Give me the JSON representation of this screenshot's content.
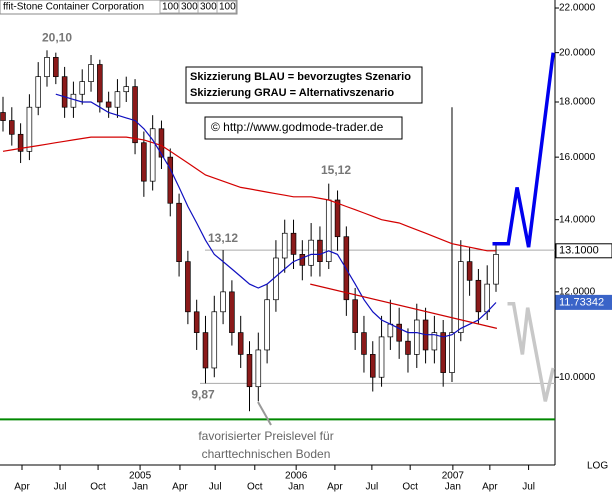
{
  "chart_data": {
    "type": "candlestick",
    "title": "ffit-Stone Container Corporation",
    "parameters": [
      "100",
      "300",
      "300",
      "100"
    ],
    "open": [
      17.6,
      17.3,
      16.8,
      16.2,
      17.8,
      19.0,
      19.8,
      19.0,
      17.8,
      18.3,
      18.8,
      19.5,
      18.0,
      17.8,
      18.4,
      18.6,
      16.5,
      15.2,
      17.0,
      16.0,
      14.5,
      12.8,
      11.5,
      11.0,
      10.2,
      11.5,
      12.0,
      11.0,
      10.5,
      9.8,
      10.6,
      11.8,
      12.9,
      13.6,
      13.0,
      12.7,
      13.4,
      12.8,
      14.6,
      13.5,
      11.8,
      11.0,
      10.5,
      10.0,
      10.9,
      11.2,
      10.8,
      10.5,
      11.3,
      10.6,
      11.0,
      10.1,
      11.0,
      12.8,
      12.3,
      11.5,
      12.2
    ],
    "high": [
      18.2,
      17.8,
      17.2,
      18.3,
      19.6,
      20.1,
      20.0,
      19.4,
      18.8,
      19.3,
      19.9,
      19.7,
      18.4,
      18.9,
      19.0,
      18.9,
      16.9,
      17.5,
      17.3,
      16.3,
      14.8,
      13.1,
      11.8,
      11.4,
      11.9,
      13.12,
      12.3,
      11.4,
      10.8,
      11.0,
      12.2,
      13.4,
      14.0,
      14.0,
      13.4,
      13.9,
      13.8,
      15.12,
      14.9,
      13.8,
      12.1,
      11.4,
      10.8,
      11.4,
      11.8,
      11.6,
      11.1,
      11.7,
      11.6,
      11.4,
      11.3,
      17.8,
      13.4,
      13.2,
      12.6,
      12.7,
      13.3
    ],
    "low": [
      16.9,
      16.4,
      15.8,
      15.9,
      17.5,
      18.6,
      18.7,
      17.4,
      17.4,
      17.9,
      18.4,
      17.6,
      17.4,
      17.4,
      18.0,
      16.1,
      14.7,
      14.9,
      15.6,
      14.1,
      12.4,
      11.2,
      10.6,
      9.87,
      10.0,
      11.2,
      10.7,
      10.2,
      9.3,
      9.5,
      10.3,
      11.5,
      12.5,
      12.6,
      12.3,
      12.4,
      12.4,
      12.6,
      13.1,
      11.4,
      10.6,
      10.1,
      9.7,
      9.8,
      10.6,
      10.4,
      10.1,
      10.2,
      10.3,
      10.3,
      9.8,
      9.9,
      10.8,
      11.9,
      11.2,
      11.3,
      12.0
    ],
    "close": [
      17.3,
      16.8,
      16.2,
      17.8,
      19.0,
      19.8,
      19.0,
      17.8,
      18.3,
      18.8,
      19.5,
      18.0,
      17.8,
      18.4,
      18.6,
      16.5,
      15.2,
      17.0,
      16.0,
      14.5,
      12.8,
      11.5,
      11.0,
      10.2,
      11.5,
      12.0,
      11.0,
      10.5,
      9.8,
      10.6,
      11.8,
      12.9,
      13.6,
      13.0,
      12.7,
      13.4,
      12.8,
      14.6,
      13.5,
      11.8,
      11.0,
      10.5,
      10.0,
      10.9,
      11.2,
      10.8,
      10.5,
      11.3,
      10.6,
      11.0,
      10.1,
      11.0,
      12.8,
      12.3,
      11.5,
      12.2,
      13.0
    ],
    "up_color": "#ffffff",
    "down_color": "#8b1a1a",
    "overlays": [
      {
        "color": "#d40000",
        "values": [
          16.2,
          16.25,
          16.3,
          16.35,
          16.4,
          16.45,
          16.5,
          16.55,
          16.6,
          16.65,
          16.7,
          16.7,
          16.7,
          16.7,
          16.7,
          16.65,
          16.6,
          16.5,
          16.4,
          16.2,
          16.0,
          15.8,
          15.6,
          15.4,
          15.3,
          15.2,
          15.1,
          15.0,
          14.95,
          14.9,
          14.85,
          14.8,
          14.75,
          14.7,
          14.7,
          14.7,
          14.65,
          14.6,
          14.5,
          14.4,
          14.3,
          14.2,
          14.1,
          14.0,
          13.95,
          13.9,
          13.8,
          13.7,
          13.6,
          13.5,
          13.4,
          13.3,
          13.25,
          13.2,
          13.15,
          13.1,
          13.1
        ]
      },
      {
        "color": "#1010c0",
        "values": [
          null,
          null,
          null,
          null,
          null,
          null,
          18.3,
          18.2,
          18.1,
          18.0,
          18.0,
          17.8,
          17.6,
          17.5,
          17.4,
          17.3,
          17.0,
          16.6,
          16.1,
          15.6,
          15.0,
          14.4,
          13.9,
          13.4,
          13.0,
          12.8,
          12.6,
          12.4,
          12.2,
          12.1,
          12.2,
          12.4,
          12.6,
          12.8,
          12.9,
          13.0,
          13.0,
          13.1,
          13.0,
          12.6,
          12.2,
          11.8,
          11.5,
          11.3,
          11.2,
          11.1,
          11.0,
          11.0,
          10.95,
          10.95,
          10.9,
          10.95,
          11.1,
          11.2,
          11.3,
          11.5,
          11.73
        ]
      }
    ],
    "scenarios": [
      {
        "color": "#0000ee",
        "x": [
          55.6,
          57.4,
          58.4,
          59.7,
          62.5
        ],
        "values": [
          13.3,
          13.3,
          15.0,
          13.2,
          20.0
        ]
      },
      {
        "color": "#c8c8c8",
        "x": [
          57.3,
          58.0,
          59.0,
          59.6,
          61.6,
          62.5
        ],
        "values": [
          11.7,
          11.7,
          10.5,
          11.6,
          9.5,
          10.2
        ]
      }
    ],
    "levels": [
      {
        "value": 13.12,
        "color": "#aaaaaa"
      },
      {
        "value": 9.87,
        "color": "#aaaaaa"
      },
      {
        "value": 9.14,
        "color": "#008800"
      }
    ],
    "trendline": {
      "color": "#cc0000",
      "x": [
        34.9,
        56.1
      ],
      "values": [
        12.2,
        11.1
      ]
    },
    "annotations": [
      {
        "value": 20.1,
        "label": "20,10"
      },
      {
        "value": 15.12,
        "label": "15,12"
      },
      {
        "value": 13.12,
        "label": "13,12"
      },
      {
        "value": 9.87,
        "label": "9,87"
      }
    ],
    "note": [
      "favorisierter Preislevel für",
      "charttechnischen Boden"
    ],
    "legend_box": [
      "Skizzierung BLAU = bevorzugtes Szenario",
      "Skizzierung GRAU = Alternativszenario"
    ],
    "source": "© http://www.godmode-trader.de",
    "price_labels": [
      {
        "value": 13.1,
        "label": "13.1000",
        "color": "#ffffff"
      },
      {
        "value": 11.73342,
        "label": "11.73342",
        "color": "#3a64c8"
      }
    ],
    "log_scale": true,
    "scale_label": "LOG",
    "ylim": [
      8.38,
      22.38
    ],
    "yticks": [
      {
        "value": 10,
        "label": "10.0000"
      },
      {
        "value": 12,
        "label": "12.0000"
      },
      {
        "value": 14,
        "label": "14.0000"
      },
      {
        "value": 16,
        "label": "16.0000"
      },
      {
        "value": 18,
        "label": "18.0000"
      },
      {
        "value": 20,
        "label": "20.0000"
      },
      {
        "value": 22,
        "label": "22.0000"
      }
    ],
    "xlim": [
      -0.34,
      62.7
    ],
    "xticks": [
      {
        "value": 2.16,
        "label": "Apr"
      },
      {
        "value": 6.48,
        "label": "Jul"
      },
      {
        "value": 10.8,
        "label": "Oct"
      },
      {
        "value": 15.57,
        "label": "Jan"
      },
      {
        "value": 20.1,
        "label": "Apr"
      },
      {
        "value": 24.1,
        "label": "Jul"
      },
      {
        "value": 28.6,
        "label": "Oct"
      },
      {
        "value": 33.3,
        "label": "Jan"
      },
      {
        "value": 37.7,
        "label": "Apr"
      },
      {
        "value": 41.9,
        "label": "Jul"
      },
      {
        "value": 46.25,
        "label": "Oct"
      },
      {
        "value": 51.1,
        "label": "Jan"
      },
      {
        "value": 55.3,
        "label": "Apr"
      },
      {
        "value": 59.7,
        "label": "Jul"
      }
    ],
    "year_labels": [
      {
        "value": 15.57,
        "label": "2005"
      },
      {
        "value": 33.3,
        "label": "2006"
      },
      {
        "value": 51.1,
        "label": "2007"
      }
    ]
  }
}
